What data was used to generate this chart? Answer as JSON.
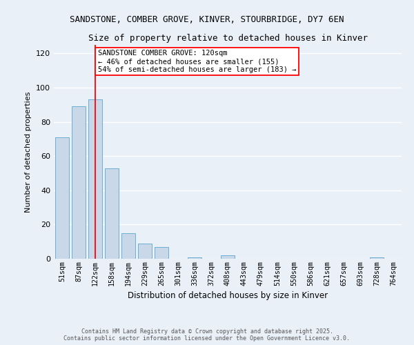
{
  "title1": "SANDSTONE, COMBER GROVE, KINVER, STOURBRIDGE, DY7 6EN",
  "title2": "Size of property relative to detached houses in Kinver",
  "xlabel": "Distribution of detached houses by size in Kinver",
  "ylabel": "Number of detached properties",
  "bin_labels": [
    "51sqm",
    "87sqm",
    "122sqm",
    "158sqm",
    "194sqm",
    "229sqm",
    "265sqm",
    "301sqm",
    "336sqm",
    "372sqm",
    "408sqm",
    "443sqm",
    "479sqm",
    "514sqm",
    "550sqm",
    "586sqm",
    "621sqm",
    "657sqm",
    "693sqm",
    "728sqm",
    "764sqm"
  ],
  "bar_values": [
    71,
    89,
    93,
    53,
    15,
    9,
    7,
    0,
    1,
    0,
    2,
    0,
    0,
    0,
    0,
    0,
    0,
    0,
    0,
    1,
    0
  ],
  "bar_color": "#c8d8e8",
  "bar_edge_color": "#6aafd4",
  "vline_color": "red",
  "vline_x": 2.0,
  "annotation_text": "SANDSTONE COMBER GROVE: 120sqm\n← 46% of detached houses are smaller (155)\n54% of semi-detached houses are larger (183) →",
  "annotation_box_color": "white",
  "annotation_box_edge": "red",
  "ylim": [
    0,
    125
  ],
  "yticks": [
    0,
    20,
    40,
    60,
    80,
    100,
    120
  ],
  "background_color": "#eaf0f8",
  "grid_color": "white",
  "footer_line1": "Contains HM Land Registry data © Crown copyright and database right 2025.",
  "footer_line2": "Contains public sector information licensed under the Open Government Licence v3.0."
}
